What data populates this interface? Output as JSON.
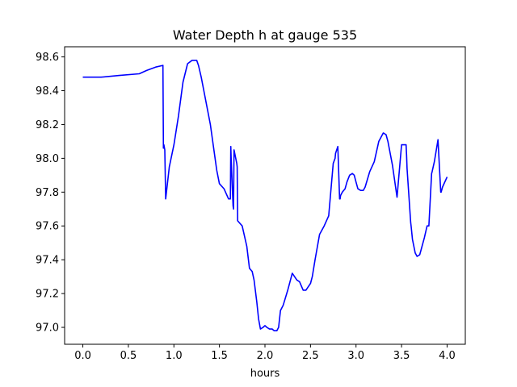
{
  "chart_data": {
    "type": "line",
    "title": "Water Depth h at gauge 535",
    "xlabel": "hours",
    "ylabel": "",
    "xlim": [
      -0.2,
      4.2
    ],
    "ylim": [
      96.9,
      98.66
    ],
    "xticks": [
      0.0,
      0.5,
      1.0,
      1.5,
      2.0,
      2.5,
      3.0,
      3.5,
      4.0
    ],
    "xtick_labels": [
      "0.0",
      "0.5",
      "1.0",
      "1.5",
      "2.0",
      "2.5",
      "3.0",
      "3.5",
      "4.0"
    ],
    "yticks": [
      97.0,
      97.2,
      97.4,
      97.6,
      97.8,
      98.0,
      98.2,
      98.4,
      98.6
    ],
    "ytick_labels": [
      "97.0",
      "97.2",
      "97.4",
      "97.6",
      "97.8",
      "98.0",
      "98.2",
      "98.4",
      "98.6"
    ],
    "grid": false,
    "series": [
      {
        "color": "#0000ff",
        "x": [
          0.0,
          0.2,
          0.4,
          0.62,
          0.7,
          0.8,
          0.88,
          0.885,
          0.89,
          0.9,
          0.91,
          0.95,
          1.0,
          1.05,
          1.1,
          1.15,
          1.2,
          1.25,
          1.27,
          1.3,
          1.4,
          1.47,
          1.5,
          1.55,
          1.6,
          1.62,
          1.625,
          1.63,
          1.65,
          1.655,
          1.66,
          1.69,
          1.695,
          1.7,
          1.75,
          1.8,
          1.83,
          1.86,
          1.88,
          1.91,
          1.93,
          1.95,
          1.98,
          2.0,
          2.02,
          2.05,
          2.08,
          2.1,
          2.13,
          2.15,
          2.17,
          2.2,
          2.25,
          2.3,
          2.35,
          2.38,
          2.42,
          2.45,
          2.5,
          2.52,
          2.55,
          2.6,
          2.65,
          2.7,
          2.75,
          2.77,
          2.775,
          2.8,
          2.82,
          2.825,
          2.83,
          2.85,
          2.88,
          2.9,
          2.93,
          2.96,
          2.98,
          3.0,
          3.02,
          3.05,
          3.08,
          3.1,
          3.15,
          3.2,
          3.25,
          3.3,
          3.33,
          3.35,
          3.4,
          3.45,
          3.5,
          3.55,
          3.555,
          3.56,
          3.6,
          3.605,
          3.62,
          3.65,
          3.67,
          3.7,
          3.72,
          3.75,
          3.78,
          3.8,
          3.83,
          3.835,
          3.86,
          3.9,
          3.93,
          3.935,
          3.95,
          4.0
        ],
        "values": [
          98.48,
          98.48,
          98.49,
          98.5,
          98.52,
          98.54,
          98.55,
          98.06,
          98.08,
          98.05,
          97.76,
          97.95,
          98.08,
          98.25,
          98.45,
          98.56,
          98.58,
          98.58,
          98.55,
          98.48,
          98.2,
          97.93,
          97.85,
          97.82,
          97.76,
          97.76,
          98.07,
          97.98,
          97.72,
          97.7,
          98.05,
          97.97,
          97.95,
          97.63,
          97.6,
          97.48,
          97.35,
          97.33,
          97.28,
          97.15,
          97.05,
          96.99,
          97.0,
          97.01,
          97.0,
          96.99,
          96.99,
          96.98,
          96.98,
          97.0,
          97.1,
          97.13,
          97.22,
          97.32,
          97.28,
          97.27,
          97.22,
          97.22,
          97.26,
          97.3,
          97.4,
          97.55,
          97.6,
          97.66,
          97.97,
          98.0,
          98.03,
          98.07,
          97.76,
          97.76,
          97.78,
          97.8,
          97.82,
          97.86,
          97.9,
          97.91,
          97.9,
          97.86,
          97.82,
          97.81,
          97.81,
          97.83,
          97.92,
          97.98,
          98.1,
          98.15,
          98.14,
          98.1,
          97.96,
          97.77,
          98.08,
          98.08,
          98.02,
          97.94,
          97.62,
          97.6,
          97.52,
          97.44,
          97.42,
          97.43,
          97.47,
          97.53,
          97.6,
          97.6,
          97.91,
          97.92,
          97.98,
          98.11,
          97.8,
          97.8,
          97.83,
          97.89
        ]
      }
    ]
  }
}
